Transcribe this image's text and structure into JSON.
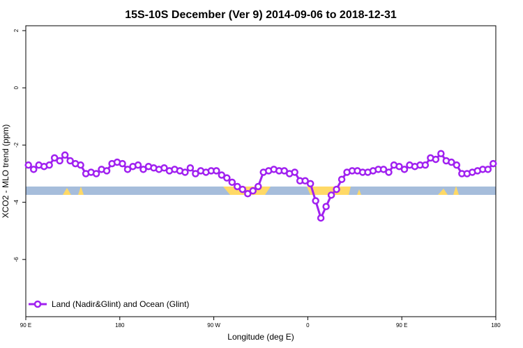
{
  "chart_data": {
    "type": "line",
    "title": "15S-10S December (Ver 9)   2014-09-06 to 2018-12-31",
    "x_label": "Longitude (deg E)",
    "y_label": "XCO2 - MLO trend (ppm)",
    "xlim": [
      90,
      540
    ],
    "xticks": [
      {
        "value": 90,
        "label": "90 E"
      },
      180,
      {
        "value": 270,
        "label": "90 W"
      },
      {
        "value": 360,
        "label": "0"
      },
      {
        "value": 450,
        "label": "90 E"
      },
      {
        "value": 540,
        "label": "180"
      }
    ],
    "ylim": [
      -8.0,
      2.17
    ],
    "yticks": [
      2,
      0,
      -2,
      -4,
      -6
    ],
    "legend": "bottom-left",
    "x": [
      92.5,
      97.5,
      102.5,
      107.5,
      112.5,
      117.5,
      122.5,
      127.5,
      132.5,
      137.5,
      142.5,
      147.5,
      152.5,
      157.5,
      162.5,
      167.5,
      172.5,
      177.5,
      182.5,
      187.5,
      192.5,
      197.5,
      202.5,
      207.5,
      212.5,
      217.5,
      222.5,
      227.5,
      232.5,
      237.5,
      242.5,
      247.5,
      252.5,
      257.5,
      262.5,
      267.5,
      272.5,
      277.5,
      282.5,
      287.5,
      292.5,
      297.5,
      302.5,
      307.5,
      312.5,
      317.5,
      322.5,
      327.5,
      332.5,
      337.5,
      342.5,
      347.5,
      352.5,
      357.5,
      362.5,
      367.5,
      372.5,
      377.5,
      382.5,
      387.5,
      392.5,
      397.5,
      402.5,
      407.5,
      412.5,
      417.5,
      422.5,
      427.5,
      432.5,
      437.5,
      442.5,
      447.5,
      452.5,
      457.5,
      462.5,
      467.5,
      472.5,
      477.5,
      482.5,
      487.5,
      492.5,
      497.5,
      502.5,
      507.5,
      512.5,
      517.5,
      522.5,
      527.5,
      532.5,
      537.5
    ],
    "series": [
      {
        "name": "Land (Nadir&Glint) and Ocean (Glint)",
        "color": "#a020f0",
        "values": [
          -2.7,
          -2.85,
          -2.7,
          -2.75,
          -2.7,
          -2.45,
          -2.55,
          -2.35,
          -2.55,
          -2.65,
          -2.7,
          -3.0,
          -2.95,
          -3.0,
          -2.85,
          -2.9,
          -2.65,
          -2.6,
          -2.65,
          -2.85,
          -2.75,
          -2.7,
          -2.85,
          -2.75,
          -2.8,
          -2.85,
          -2.8,
          -2.9,
          -2.85,
          -2.9,
          -2.95,
          -2.8,
          -3.0,
          -2.9,
          -2.95,
          -2.9,
          -2.9,
          -3.05,
          -3.15,
          -3.3,
          -3.45,
          -3.55,
          -3.7,
          -3.6,
          -3.45,
          -2.95,
          -2.9,
          -2.85,
          -2.9,
          -2.9,
          -3.0,
          -2.95,
          -3.25,
          -3.25,
          -3.35,
          -3.95,
          -4.55,
          -4.15,
          -3.75,
          -3.55,
          -3.2,
          -2.95,
          -2.9,
          -2.9,
          -2.95,
          -2.95,
          -2.9,
          -2.85,
          -2.85,
          -2.95,
          -2.7,
          -2.75,
          -2.85,
          -2.7,
          -2.75,
          -2.7,
          -2.7,
          -2.45,
          -2.5,
          -2.3,
          -2.55,
          -2.6,
          -2.7,
          -3.0,
          -3.0,
          -2.95,
          -2.9,
          -2.85,
          -2.85,
          -2.65
        ]
      }
    ]
  }
}
